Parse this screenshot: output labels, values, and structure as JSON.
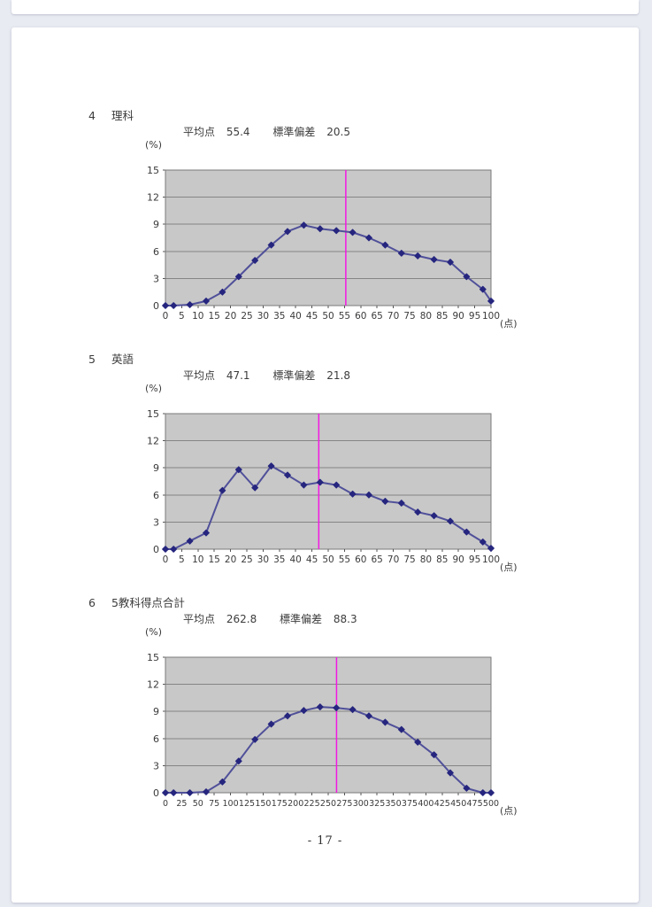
{
  "page": {
    "number_label": "- 17 -"
  },
  "colors": {
    "plot_background": "#c8c8c8",
    "gridline": "#858585",
    "plot_border": "#7a7a7a",
    "axis": "#555555",
    "series_line": "#50509a",
    "series_marker": "#26267f",
    "mean_line": "#f318e3",
    "page_background": "#ffffff",
    "margin_background": "#e9ebf2",
    "text": "#3a3a3a"
  },
  "sections": [
    {
      "number": "4",
      "title": "理科",
      "mean_label": "平均点",
      "mean_value": "55.4",
      "sd_label": "標準偏差",
      "sd_value": "20.5",
      "y_unit": "(%)",
      "x_unit": "(点)"
    },
    {
      "number": "5",
      "title": "英語",
      "mean_label": "平均点",
      "mean_value": "47.1",
      "sd_label": "標準偏差",
      "sd_value": "21.8",
      "y_unit": "(%)",
      "x_unit": "(点)"
    },
    {
      "number": "6",
      "title": "5教科得点合計",
      "mean_label": "平均点",
      "mean_value": "262.8",
      "sd_label": "標準偏差",
      "sd_value": "88.3",
      "y_unit": "(%)",
      "x_unit": "(点)"
    }
  ],
  "chart_data": [
    {
      "type": "line",
      "title": "理科 得点分布",
      "mean": 55.4,
      "std_dev": 20.5,
      "x": [
        0,
        2.5,
        7.5,
        12.5,
        17.5,
        22.5,
        27.5,
        32.5,
        37.5,
        42.5,
        47.5,
        52.5,
        57.5,
        62.5,
        67.5,
        72.5,
        77.5,
        82.5,
        87.5,
        92.5,
        97.5,
        100
      ],
      "y": [
        0,
        0,
        0.1,
        0.5,
        1.5,
        3.2,
        5.0,
        6.7,
        8.2,
        8.9,
        8.5,
        8.3,
        8.1,
        7.5,
        6.7,
        5.8,
        5.5,
        5.1,
        4.8,
        3.2,
        1.8,
        0.5
      ],
      "xlim": [
        0,
        100
      ],
      "ylim": [
        0,
        15
      ],
      "xticks": [
        0,
        5,
        10,
        15,
        20,
        25,
        30,
        35,
        40,
        45,
        50,
        55,
        60,
        65,
        70,
        75,
        80,
        85,
        90,
        95,
        100
      ],
      "yticks": [
        0,
        3,
        6,
        9,
        12,
        15
      ],
      "xlabel": "(点)",
      "ylabel": "(%)",
      "mean_line_x": 55.4,
      "tick_font_size": 10.5,
      "grid": "horizontal",
      "legend": null
    },
    {
      "type": "line",
      "title": "英語 得点分布",
      "mean": 47.1,
      "std_dev": 21.8,
      "x": [
        0,
        2.5,
        7.5,
        12.5,
        17.5,
        22.5,
        27.5,
        32.5,
        37.5,
        42.5,
        47.5,
        52.5,
        57.5,
        62.5,
        67.5,
        72.5,
        77.5,
        82.5,
        87.5,
        92.5,
        97.5,
        100
      ],
      "y": [
        0,
        0,
        0.9,
        1.8,
        6.5,
        8.8,
        6.8,
        9.2,
        8.2,
        7.1,
        7.4,
        7.1,
        6.1,
        6.0,
        5.3,
        5.1,
        4.1,
        3.7,
        3.1,
        1.9,
        0.8,
        0.1
      ],
      "xlim": [
        0,
        100
      ],
      "ylim": [
        0,
        15
      ],
      "xticks": [
        0,
        5,
        10,
        15,
        20,
        25,
        30,
        35,
        40,
        45,
        50,
        55,
        60,
        65,
        70,
        75,
        80,
        85,
        90,
        95,
        100
      ],
      "yticks": [
        0,
        3,
        6,
        9,
        12,
        15
      ],
      "xlabel": "(点)",
      "ylabel": "(%)",
      "mean_line_x": 47.1,
      "tick_font_size": 10.5,
      "grid": "horizontal",
      "legend": null
    },
    {
      "type": "line",
      "title": "5教科得点合計 得点分布",
      "mean": 262.8,
      "std_dev": 88.3,
      "x": [
        0,
        12.5,
        37.5,
        62.5,
        87.5,
        112.5,
        137.5,
        162.5,
        187.5,
        212.5,
        237.5,
        262.5,
        287.5,
        312.5,
        337.5,
        362.5,
        387.5,
        412.5,
        437.5,
        462.5,
        487.5,
        500
      ],
      "y": [
        0,
        0,
        0,
        0.1,
        1.2,
        3.5,
        5.9,
        7.6,
        8.5,
        9.1,
        9.5,
        9.4,
        9.2,
        8.5,
        7.8,
        7.0,
        5.6,
        4.2,
        2.2,
        0.5,
        0,
        0
      ],
      "xlim": [
        0,
        500
      ],
      "ylim": [
        0,
        15
      ],
      "xticks": [
        0,
        25,
        50,
        75,
        100,
        125,
        150,
        175,
        200,
        225,
        250,
        275,
        300,
        325,
        350,
        375,
        400,
        425,
        450,
        475,
        500
      ],
      "yticks": [
        0,
        3,
        6,
        9,
        12,
        15
      ],
      "xlabel": "(点)",
      "ylabel": "(%)",
      "mean_line_x": 262.8,
      "tick_font_size": 9.5,
      "grid": "horizontal",
      "legend": null
    }
  ]
}
